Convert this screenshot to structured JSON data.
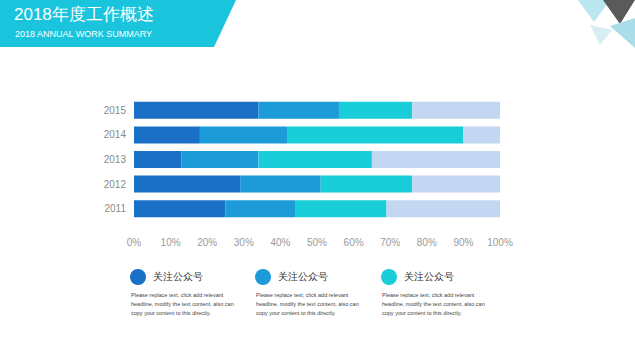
{
  "chart_data": {
    "type": "bar",
    "title": "2018年度工作概述",
    "subtitle": "2018 ANNUAL WORK SUMMARY",
    "orientation": "horizontal",
    "stacked": true,
    "grid": false,
    "categories": [
      "2011",
      "2012",
      "2013",
      "2014",
      "2015"
    ],
    "series": [
      {
        "name": "关注公众号",
        "color": "#1a6fc6",
        "values": [
          25,
          29,
          13,
          18,
          34
        ],
        "description": "Please replace text, click add relevant headline, modify the text content, also can copy your content to this directly."
      },
      {
        "name": "关注公众号",
        "color": "#1d9ad8",
        "values": [
          19,
          22,
          21,
          24,
          22
        ],
        "description": "Please replace text, click add relevant headline, modify the text content, also can copy your content to this directly."
      },
      {
        "name": "关注公众号",
        "color": "#19cdd9",
        "values": [
          25,
          25,
          31,
          48,
          20
        ],
        "description": "Please replace text, click add relevant headline, modify the text content, also can copy your content to this directly."
      },
      {
        "color": "#c4d7f2",
        "values": [
          31,
          24,
          35,
          10,
          24
        ]
      }
    ],
    "xlim": [
      0,
      100
    ],
    "xticks": [
      {
        "value": 0,
        "label": "0%"
      },
      {
        "value": 10,
        "label": "10%"
      },
      {
        "value": 20,
        "label": "20%"
      },
      {
        "value": 30,
        "label": "30%"
      },
      {
        "value": 40,
        "label": "40%"
      },
      {
        "value": 50,
        "label": "50%"
      },
      {
        "value": 60,
        "label": "60%"
      },
      {
        "value": 70,
        "label": "70%"
      },
      {
        "value": 80,
        "label": "80%"
      },
      {
        "value": 90,
        "label": "90%"
      },
      {
        "value": 100,
        "label": "100%"
      }
    ]
  }
}
